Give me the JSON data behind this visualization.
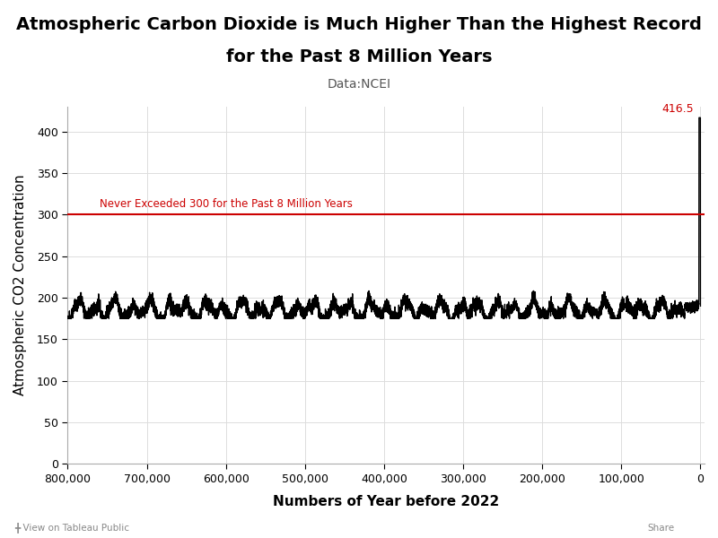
{
  "title_line1": "Atmospheric Carbon Dioxide is Much Higher Than the Highest Record",
  "title_line2": "for the Past 8 Million Years",
  "subtitle": "Data:NCEI",
  "xlabel": "Numbers of Year before 2022",
  "ylabel": "Atmospheric CO2 Concentration",
  "hline_y": 300,
  "hline_label": "Never Exceeded 300 for the Past 8 Million Years",
  "hline_color": "#cc0000",
  "current_value": 416.5,
  "current_value_color": "#cc0000",
  "line_color": "#000000",
  "xlim": [
    800000,
    -5000
  ],
  "ylim": [
    0,
    430
  ],
  "yticks": [
    0,
    50,
    100,
    150,
    200,
    250,
    300,
    350,
    400
  ],
  "xticks": [
    800000,
    700000,
    600000,
    500000,
    400000,
    300000,
    200000,
    100000,
    0
  ],
  "background_color": "#ffffff",
  "grid_color": "#dddddd",
  "title_fontsize": 14,
  "subtitle_fontsize": 10,
  "axis_label_fontsize": 11,
  "tick_fontsize": 9,
  "line_width": 1.0
}
